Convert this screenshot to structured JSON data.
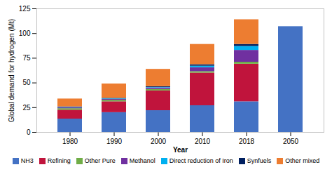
{
  "chart_data": {
    "type": "bar",
    "stacked": true,
    "xlabel": "Year",
    "ylabel": "Global demand for hydrogen (Mt)",
    "categories": [
      "1980",
      "1990",
      "2000",
      "2010",
      "2018",
      "2050"
    ],
    "series": [
      {
        "name": "NH3",
        "color": "#4472C4",
        "values": [
          13.5,
          20.0,
          22.0,
          27.0,
          31.0,
          107.0
        ]
      },
      {
        "name": "Refining",
        "color": "#C0143C",
        "values": [
          9.0,
          11.0,
          20.0,
          33.0,
          38.0,
          0.0
        ]
      },
      {
        "name": "Other Pure",
        "color": "#70AD47",
        "values": [
          1.5,
          1.5,
          1.5,
          1.5,
          2.0,
          0.0
        ]
      },
      {
        "name": "Methanol",
        "color": "#7030A0",
        "values": [
          0.8,
          1.0,
          1.5,
          4.0,
          12.0,
          0.0
        ]
      },
      {
        "name": "Direct reduction of Iron",
        "color": "#00B0F0",
        "values": [
          0.5,
          0.5,
          0.5,
          1.5,
          4.0,
          0.0
        ]
      },
      {
        "name": "Synfuels",
        "color": "#002060",
        "values": [
          0.5,
          0.5,
          0.8,
          1.5,
          2.0,
          0.0
        ]
      },
      {
        "name": "Other mixed",
        "color": "#ED7D31",
        "values": [
          8.0,
          14.5,
          17.5,
          20.5,
          25.0,
          0.0
        ]
      }
    ],
    "ylim": [
      0,
      125
    ],
    "yticks": [
      0,
      25,
      50,
      75,
      100,
      125
    ],
    "grid": false,
    "legend": "bottom"
  }
}
